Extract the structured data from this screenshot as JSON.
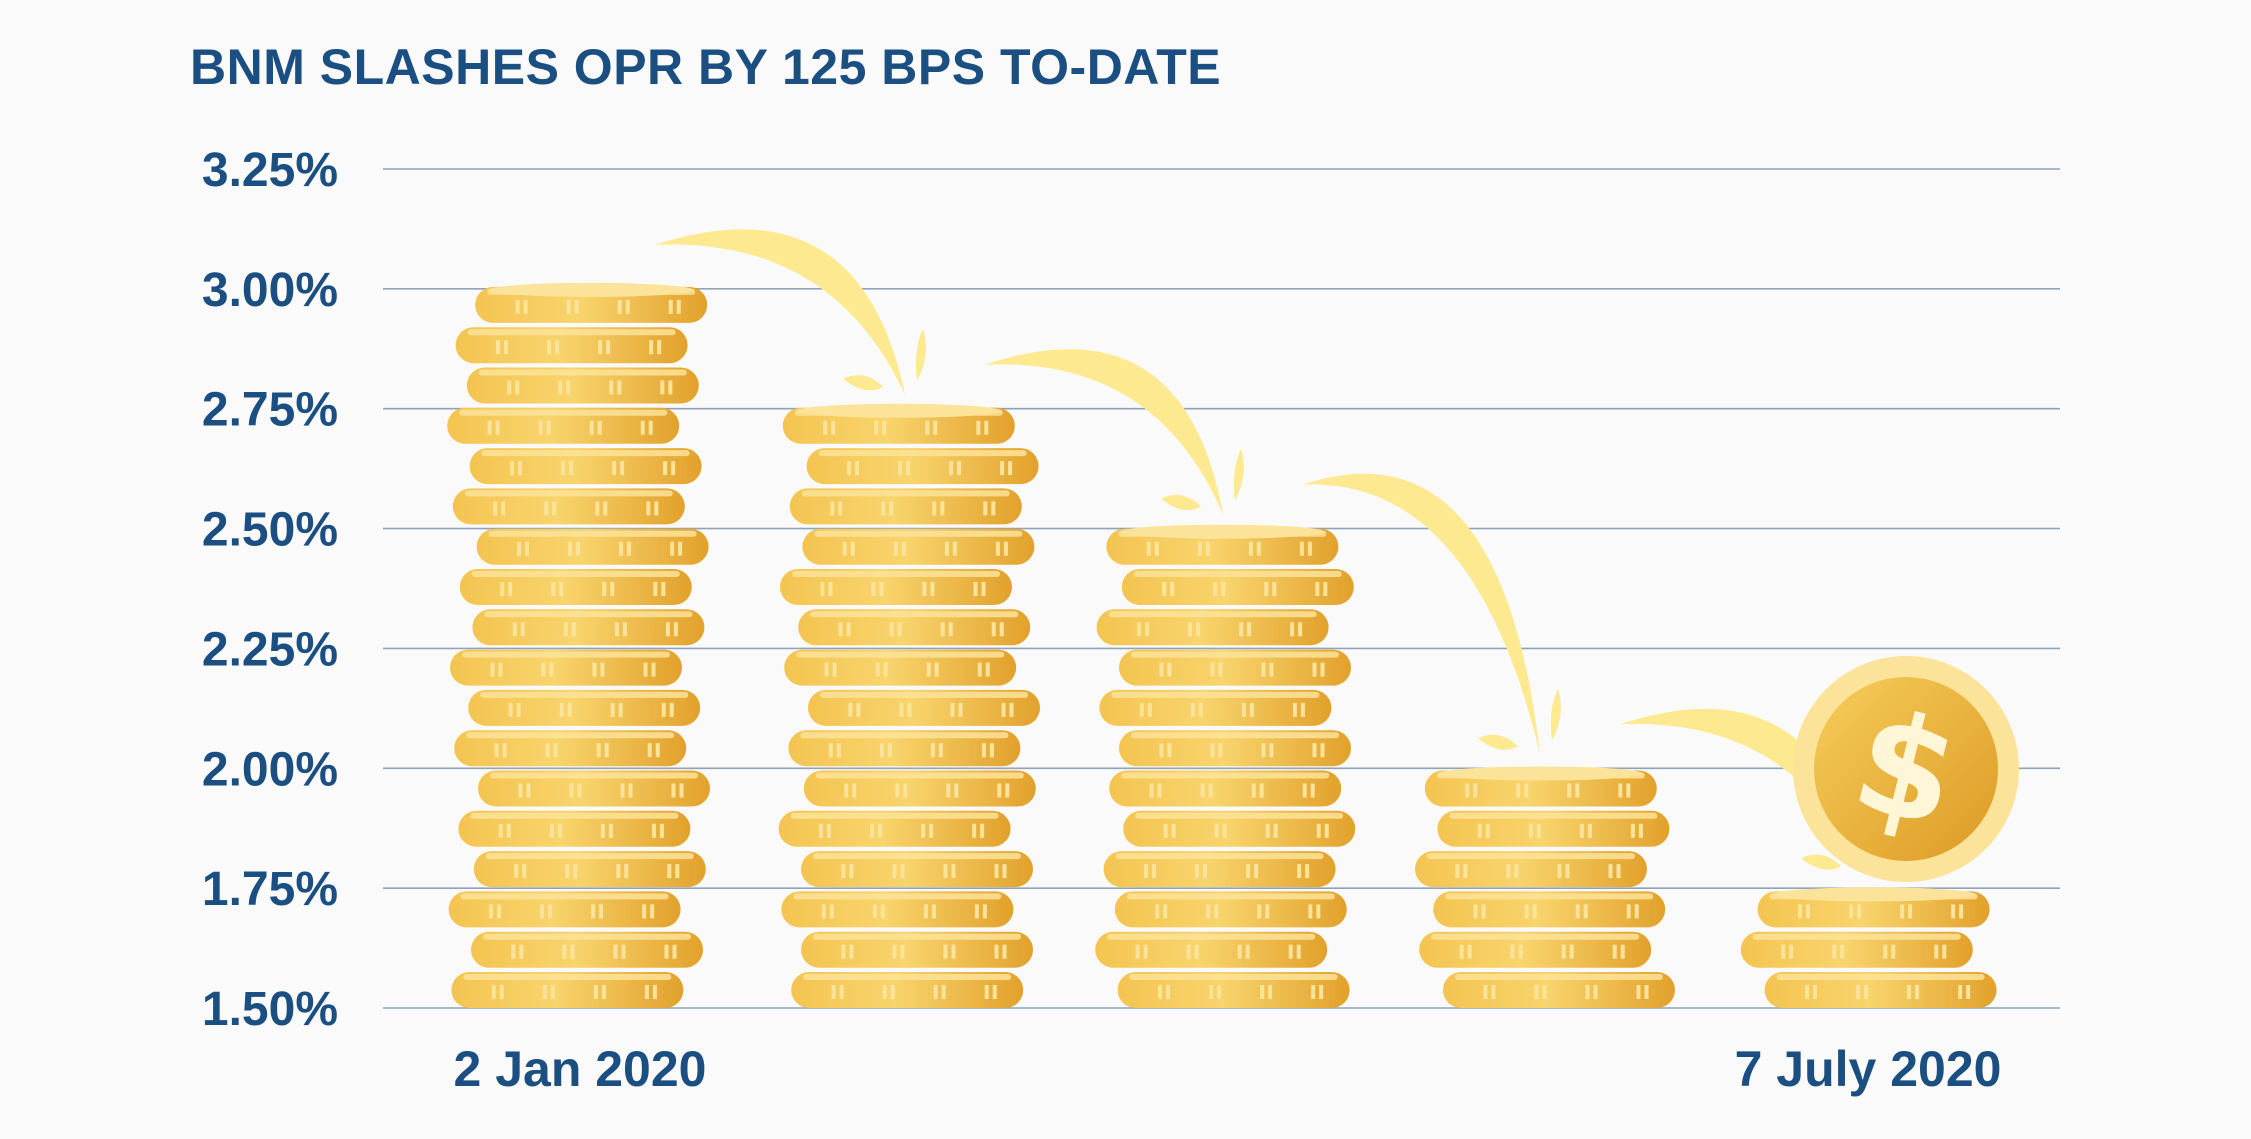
{
  "chart_data": {
    "type": "bar",
    "title": "BNM SLASHES OPR BY 125 BPS TO-DATE",
    "xlabel": "",
    "ylabel": "",
    "ylim": [
      1.5,
      3.25
    ],
    "y_ticks": [
      "3.25%",
      "3.00%",
      "2.75%",
      "2.50%",
      "2.25%",
      "2.00%",
      "1.75%",
      "1.50%"
    ],
    "categories": [
      "2 Jan 2020",
      "",
      "",
      "",
      "7 July 2020"
    ],
    "values": [
      3.0,
      2.75,
      2.5,
      2.0,
      1.75
    ],
    "grid": true,
    "legend": "none",
    "colors": {
      "title": "#1b4f82",
      "axis_text": "#1b4f82",
      "grid": "#8fa3bc",
      "coin_light": "#f8d36a",
      "coin_mid": "#f0bb45",
      "coin_dark": "#dc9a26",
      "coin_rim": "#fbe39a",
      "arrow": "#fde98f"
    },
    "icons": [
      "coin-stack-icon",
      "dollar-coin-icon",
      "curved-arrow-icon"
    ],
    "coin_symbol": "$"
  }
}
